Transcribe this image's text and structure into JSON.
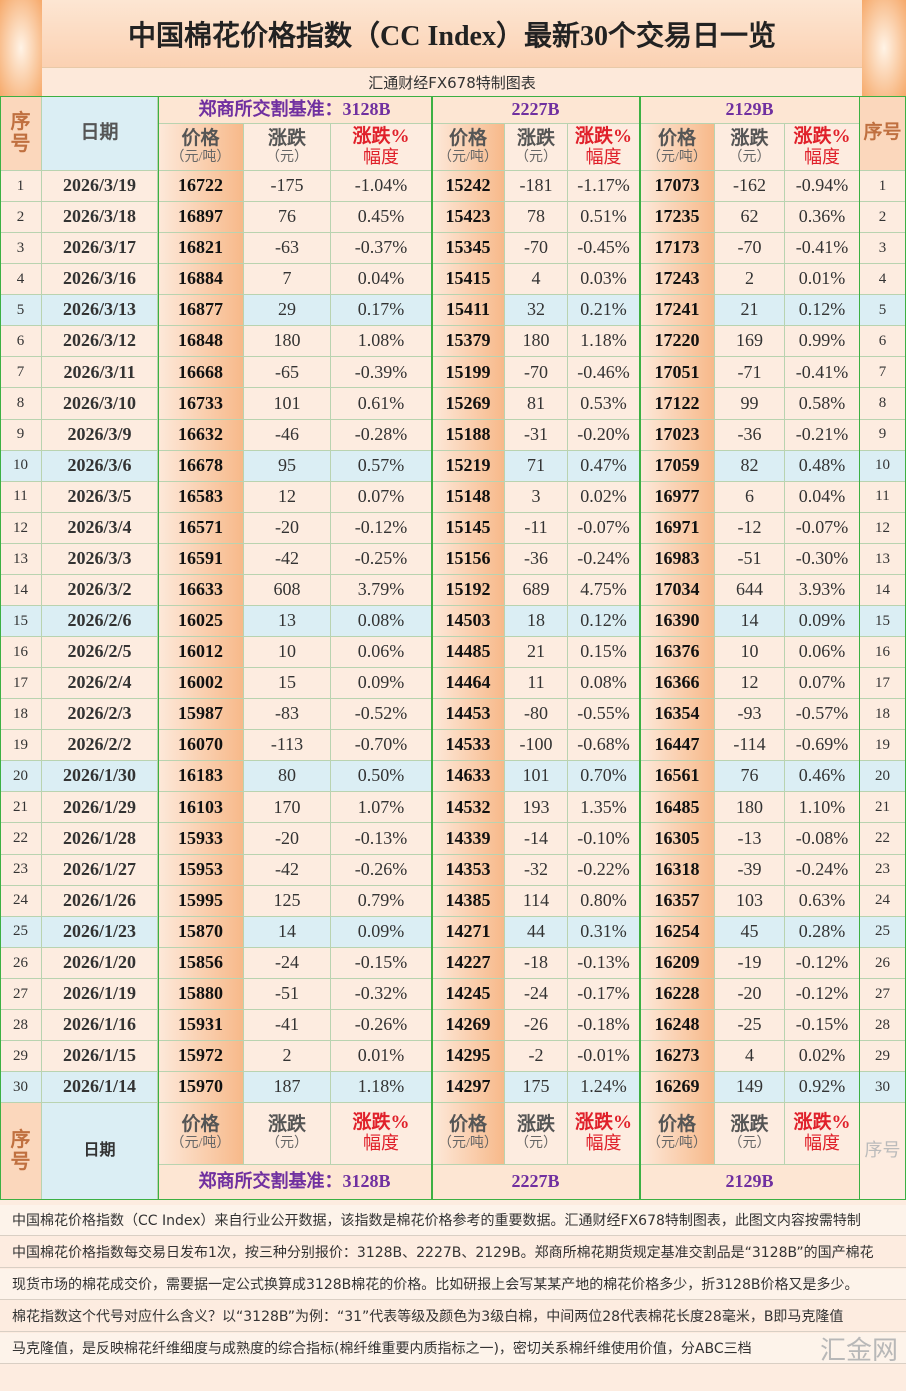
{
  "title": "中国棉花价格指数（CC Index）最新30个交易日一览",
  "subtitle": "汇通财经FX678特制图表",
  "header": {
    "seq": "序号",
    "date": "日期",
    "groups": [
      "郑商所交割基准：3128B",
      "2227B",
      "2129B"
    ],
    "columns": [
      {
        "label": "价格",
        "unit": "（元/吨）"
      },
      {
        "label": "涨跌",
        "unit": "（元）"
      },
      {
        "label": "涨跌%",
        "unit": "幅度"
      }
    ]
  },
  "rows": [
    [
      1,
      "2026/3/19",
      16722,
      -175,
      "-1.04%",
      15242,
      -181,
      "-1.17%",
      17073,
      -162,
      "-0.94%"
    ],
    [
      2,
      "2026/3/18",
      16897,
      76,
      "0.45%",
      15423,
      78,
      "0.51%",
      17235,
      62,
      "0.36%"
    ],
    [
      3,
      "2026/3/17",
      16821,
      -63,
      "-0.37%",
      15345,
      -70,
      "-0.45%",
      17173,
      -70,
      "-0.41%"
    ],
    [
      4,
      "2026/3/16",
      16884,
      7,
      "0.04%",
      15415,
      4,
      "0.03%",
      17243,
      2,
      "0.01%"
    ],
    [
      5,
      "2026/3/13",
      16877,
      29,
      "0.17%",
      15411,
      32,
      "0.21%",
      17241,
      21,
      "0.12%"
    ],
    [
      6,
      "2026/3/12",
      16848,
      180,
      "1.08%",
      15379,
      180,
      "1.18%",
      17220,
      169,
      "0.99%"
    ],
    [
      7,
      "2026/3/11",
      16668,
      -65,
      "-0.39%",
      15199,
      -70,
      "-0.46%",
      17051,
      -71,
      "-0.41%"
    ],
    [
      8,
      "2026/3/10",
      16733,
      101,
      "0.61%",
      15269,
      81,
      "0.53%",
      17122,
      99,
      "0.58%"
    ],
    [
      9,
      "2026/3/9",
      16632,
      -46,
      "-0.28%",
      15188,
      -31,
      "-0.20%",
      17023,
      -36,
      "-0.21%"
    ],
    [
      10,
      "2026/3/6",
      16678,
      95,
      "0.57%",
      15219,
      71,
      "0.47%",
      17059,
      82,
      "0.48%"
    ],
    [
      11,
      "2026/3/5",
      16583,
      12,
      "0.07%",
      15148,
      3,
      "0.02%",
      16977,
      6,
      "0.04%"
    ],
    [
      12,
      "2026/3/4",
      16571,
      -20,
      "-0.12%",
      15145,
      -11,
      "-0.07%",
      16971,
      -12,
      "-0.07%"
    ],
    [
      13,
      "2026/3/3",
      16591,
      -42,
      "-0.25%",
      15156,
      -36,
      "-0.24%",
      16983,
      -51,
      "-0.30%"
    ],
    [
      14,
      "2026/3/2",
      16633,
      608,
      "3.79%",
      15192,
      689,
      "4.75%",
      17034,
      644,
      "3.93%"
    ],
    [
      15,
      "2026/2/6",
      16025,
      13,
      "0.08%",
      14503,
      18,
      "0.12%",
      16390,
      14,
      "0.09%"
    ],
    [
      16,
      "2026/2/5",
      16012,
      10,
      "0.06%",
      14485,
      21,
      "0.15%",
      16376,
      10,
      "0.06%"
    ],
    [
      17,
      "2026/2/4",
      16002,
      15,
      "0.09%",
      14464,
      11,
      "0.08%",
      16366,
      12,
      "0.07%"
    ],
    [
      18,
      "2026/2/3",
      15987,
      -83,
      "-0.52%",
      14453,
      -80,
      "-0.55%",
      16354,
      -93,
      "-0.57%"
    ],
    [
      19,
      "2026/2/2",
      16070,
      -113,
      "-0.70%",
      14533,
      -100,
      "-0.68%",
      16447,
      -114,
      "-0.69%"
    ],
    [
      20,
      "2026/1/30",
      16183,
      80,
      "0.50%",
      14633,
      101,
      "0.70%",
      16561,
      76,
      "0.46%"
    ],
    [
      21,
      "2026/1/29",
      16103,
      170,
      "1.07%",
      14532,
      193,
      "1.35%",
      16485,
      180,
      "1.10%"
    ],
    [
      22,
      "2026/1/28",
      15933,
      -20,
      "-0.13%",
      14339,
      -14,
      "-0.10%",
      16305,
      -13,
      "-0.08%"
    ],
    [
      23,
      "2026/1/27",
      15953,
      -42,
      "-0.26%",
      14353,
      -32,
      "-0.22%",
      16318,
      -39,
      "-0.24%"
    ],
    [
      24,
      "2026/1/26",
      15995,
      125,
      "0.79%",
      14385,
      114,
      "0.80%",
      16357,
      103,
      "0.63%"
    ],
    [
      25,
      "2026/1/23",
      15870,
      14,
      "0.09%",
      14271,
      44,
      "0.31%",
      16254,
      45,
      "0.28%"
    ],
    [
      26,
      "2026/1/20",
      15856,
      -24,
      "-0.15%",
      14227,
      -18,
      "-0.13%",
      16209,
      -19,
      "-0.12%"
    ],
    [
      27,
      "2026/1/19",
      15880,
      -51,
      "-0.32%",
      14245,
      -24,
      "-0.17%",
      16228,
      -20,
      "-0.12%"
    ],
    [
      28,
      "2026/1/16",
      15931,
      -41,
      "-0.26%",
      14269,
      -26,
      "-0.18%",
      16248,
      -25,
      "-0.15%"
    ],
    [
      29,
      "2026/1/15",
      15972,
      2,
      "0.01%",
      14295,
      -2,
      "-0.01%",
      16273,
      4,
      "0.02%"
    ],
    [
      30,
      "2026/1/14",
      15970,
      187,
      "1.18%",
      14297,
      175,
      "1.24%",
      16269,
      149,
      "0.92%"
    ]
  ],
  "notes": [
    "中国棉花价格指数（CC Index）来自行业公开数据，该指数是棉花价格参考的重要数据。汇通财经FX678特制图表，此图文内容按需特制",
    "中国棉花价格指数每交易日发布1次，按三种分别报价：3128B、2227B、2129B。郑商所棉花期货规定基准交割品是“3128B”的国产棉花",
    "现货市场的棉花成交价，需要据一定公式换算成3128B棉花的价格。比如研报上会写某某产地的棉花价格多少，折3128B价格又是多少。",
    "棉花指数这个代号对应什么含义？以“3128B”为例：“31”代表等级及颜色为3级白棉，中间两位28代表棉花长度28毫米，B即马克隆值",
    "马克隆值，是反映棉花纤维细度与成熟度的综合指标(棉纤维重要内质指标之一)，密切关系棉纤维使用价值，分ABC三档"
  ],
  "watermark": "汇金网"
}
